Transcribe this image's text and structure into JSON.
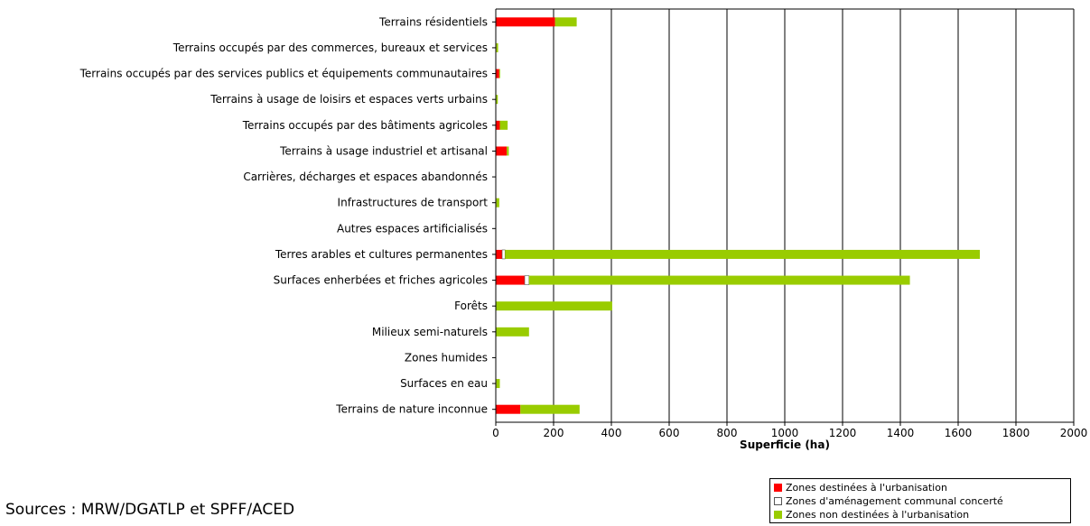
{
  "chart_data": {
    "type": "bar",
    "orientation": "horizontal",
    "stacked": true,
    "categories": [
      "Terrains résidentiels",
      "Terrains occupés par des commerces, bureaux et services",
      "Terrains occupés par des services publics et équipements communautaires",
      "Terrains à usage de loisirs et espaces verts urbains",
      "Terrains occupés par des bâtiments agricoles",
      "Terrains à usage industriel et artisanal",
      "Carrières, décharges et espaces abandonnés",
      "Infrastructures de transport",
      "Autres espaces artificialisés",
      "Terres arables et cultures permanentes",
      "Surfaces enherbées et friches agricoles",
      "Forêts",
      "Milieux semi-naturels",
      "Zones humides",
      "Surfaces en eau",
      "Terrains de nature inconnue"
    ],
    "series": [
      {
        "name": "Zones destinées à l'urbanisation",
        "color": "#ff0000",
        "values": [
          205,
          2,
          12,
          1,
          14,
          38,
          0,
          2,
          0,
          22,
          100,
          0,
          0,
          0,
          2,
          85
        ]
      },
      {
        "name": "Zones d'aménagement communal concerté",
        "color": "#ffffff",
        "values": [
          0,
          0,
          0,
          0,
          0,
          0,
          0,
          0,
          0,
          10,
          15,
          0,
          0,
          0,
          0,
          0
        ]
      },
      {
        "name": "Zones non destinées à l'urbanisation",
        "color": "#99cc00",
        "values": [
          75,
          6,
          3,
          6,
          27,
          7,
          0,
          10,
          0,
          1643,
          1318,
          403,
          115,
          0,
          12,
          205
        ]
      }
    ],
    "xlabel": "Superficie (ha)",
    "xlim": [
      0,
      2000
    ],
    "xticks": [
      0,
      200,
      400,
      600,
      800,
      1000,
      1200,
      1400,
      1600,
      1800,
      2000
    ],
    "grid": true,
    "legend_position": "bottom-right"
  },
  "sources": "Sources : MRW/DGATLP et SPFF/ACED"
}
